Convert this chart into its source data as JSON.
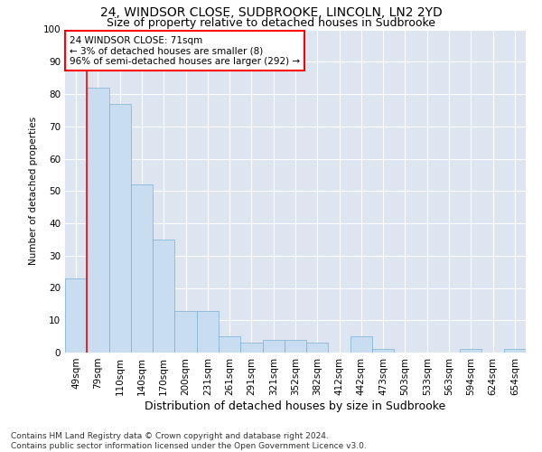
{
  "title": "24, WINDSOR CLOSE, SUDBROOKE, LINCOLN, LN2 2YD",
  "subtitle": "Size of property relative to detached houses in Sudbrooke",
  "xlabel": "Distribution of detached houses by size in Sudbrooke",
  "ylabel": "Number of detached properties",
  "bar_color": "#c9ddf0",
  "bar_edge_color": "#7aafd4",
  "background_color": "#dde6f0",
  "grid_color": "#ffffff",
  "categories": [
    "49sqm",
    "79sqm",
    "110sqm",
    "140sqm",
    "170sqm",
    "200sqm",
    "231sqm",
    "261sqm",
    "291sqm",
    "321sqm",
    "352sqm",
    "382sqm",
    "412sqm",
    "442sqm",
    "473sqm",
    "503sqm",
    "533sqm",
    "563sqm",
    "594sqm",
    "624sqm",
    "654sqm"
  ],
  "values": [
    23,
    82,
    77,
    52,
    35,
    13,
    13,
    5,
    3,
    4,
    4,
    3,
    0,
    5,
    1,
    0,
    0,
    0,
    1,
    0,
    1
  ],
  "ylim": [
    0,
    100
  ],
  "yticks": [
    0,
    10,
    20,
    30,
    40,
    50,
    60,
    70,
    80,
    90,
    100
  ],
  "property_line_x": 0.5,
  "annotation_text": "24 WINDSOR CLOSE: 71sqm\n← 3% of detached houses are smaller (8)\n96% of semi-detached houses are larger (292) →",
  "annotation_fontsize": 7.5,
  "footer": "Contains HM Land Registry data © Crown copyright and database right 2024.\nContains public sector information licensed under the Open Government Licence v3.0.",
  "title_fontsize": 10,
  "subtitle_fontsize": 9,
  "xlabel_fontsize": 9,
  "ylabel_fontsize": 7.5,
  "tick_fontsize": 7.5,
  "footer_fontsize": 6.5
}
